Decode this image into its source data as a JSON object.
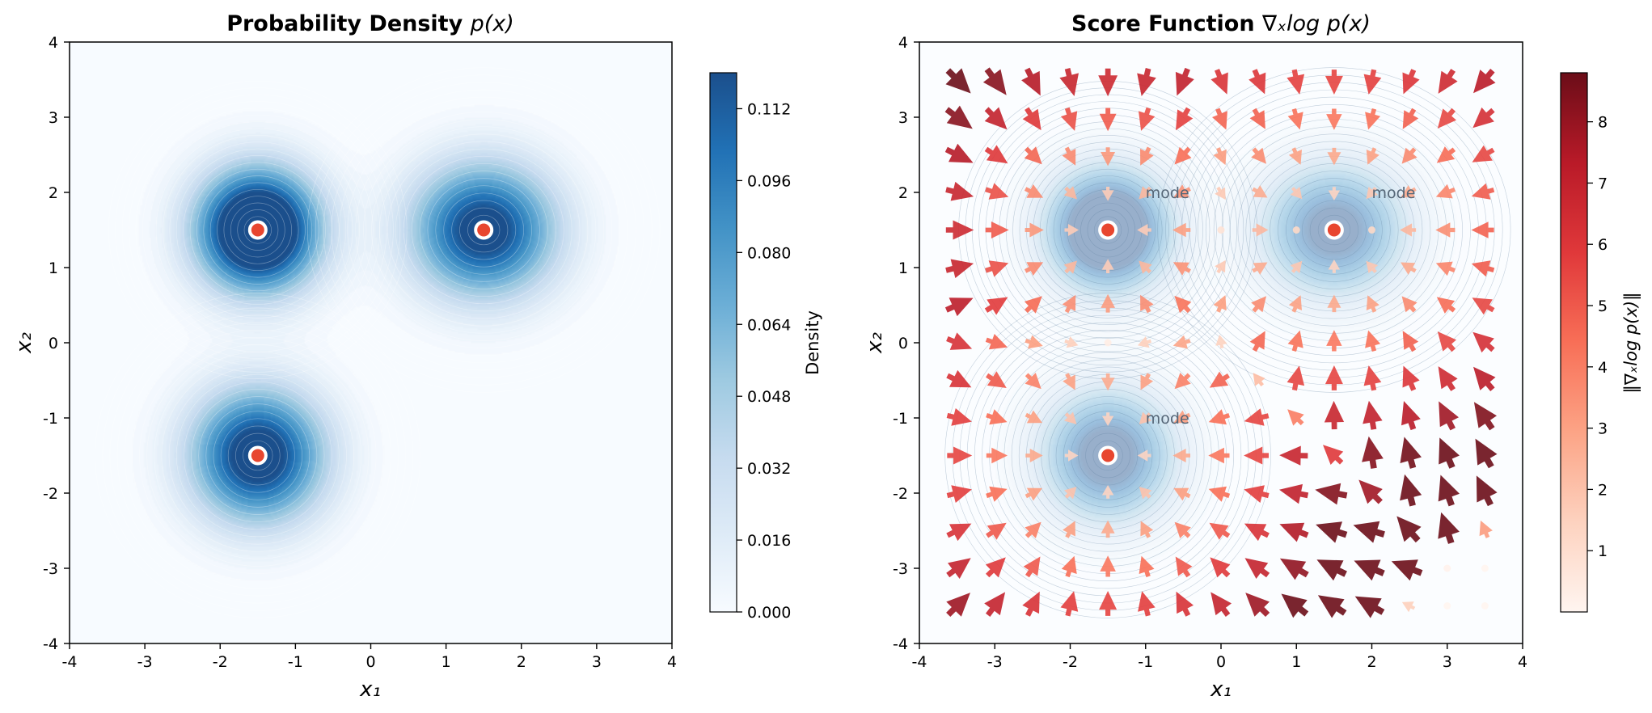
{
  "colors": {
    "density_map": [
      "#f7fbff",
      "#deebf7",
      "#c6dbef",
      "#9ecae1",
      "#6baed6",
      "#4292c6",
      "#2171b5",
      "#1b4f8c"
    ],
    "score_map": [
      "#fff5f0",
      "#fdd2bf",
      "#fca486",
      "#f86f57",
      "#e0383a",
      "#b91a28",
      "#6b0d18"
    ],
    "mode_marker": "#e8462f",
    "mode_marker_edge": "#ffffff"
  },
  "chart_data": [
    {
      "type": "heatmap",
      "title_text": "Probability Density",
      "title_math": "p(x)",
      "xlabel": "x₁",
      "ylabel": "x₂",
      "xlim": [
        -4,
        4
      ],
      "ylim": [
        -4,
        4
      ],
      "xticks": [
        "-4",
        "-3",
        "-2",
        "-1",
        "0",
        "1",
        "2",
        "3",
        "4"
      ],
      "yticks": [
        "-4",
        "-3",
        "-2",
        "-1",
        "0",
        "1",
        "2",
        "3",
        "4"
      ],
      "grid": false,
      "colorbar": {
        "label": "Density",
        "range": [
          0,
          0.12
        ],
        "ticks": [
          "0.000",
          "0.016",
          "0.032",
          "0.048",
          "0.064",
          "0.080",
          "0.096",
          "0.112"
        ],
        "tick_values": [
          0,
          0.016,
          0.032,
          0.048,
          0.064,
          0.08,
          0.096,
          0.112
        ]
      },
      "modes": [
        {
          "x": -1.5,
          "y": 1.5,
          "sigma_x": 0.55,
          "sigma_y": 0.55,
          "weight": 0.35
        },
        {
          "x": 1.5,
          "y": 1.5,
          "sigma_x": 0.65,
          "sigma_y": 0.6,
          "weight": 0.33
        },
        {
          "x": -1.5,
          "y": -1.5,
          "sigma_x": 0.6,
          "sigma_y": 0.6,
          "weight": 0.32
        }
      ]
    },
    {
      "type": "quiver",
      "title_text": "Score Function",
      "title_math": "∇ₓlog p(x)",
      "xlabel": "x₁",
      "ylabel": "x₂",
      "xlim": [
        -4,
        4
      ],
      "ylim": [
        -4,
        4
      ],
      "xticks": [
        "-4",
        "-3",
        "-2",
        "-1",
        "0",
        "1",
        "2",
        "3",
        "4"
      ],
      "yticks": [
        "-4",
        "-3",
        "-2",
        "-1",
        "0",
        "1",
        "2",
        "3",
        "4"
      ],
      "grid": false,
      "grid_points": {
        "start": -3.5,
        "step": 0.5,
        "count": 15
      },
      "colorbar": {
        "label": "‖∇ₓlog p(x)‖",
        "range": [
          0,
          8.8
        ],
        "ticks": [
          "1",
          "2",
          "3",
          "4",
          "5",
          "6",
          "7",
          "8"
        ],
        "tick_values": [
          1,
          2,
          3,
          4,
          5,
          6,
          7,
          8
        ]
      },
      "mode_labels": [
        {
          "text": "mode",
          "x": -1.0,
          "y": 2.0
        },
        {
          "text": "mode",
          "x": 2.0,
          "y": 2.0
        },
        {
          "text": "mode",
          "x": -1.0,
          "y": -1.0
        }
      ]
    }
  ]
}
